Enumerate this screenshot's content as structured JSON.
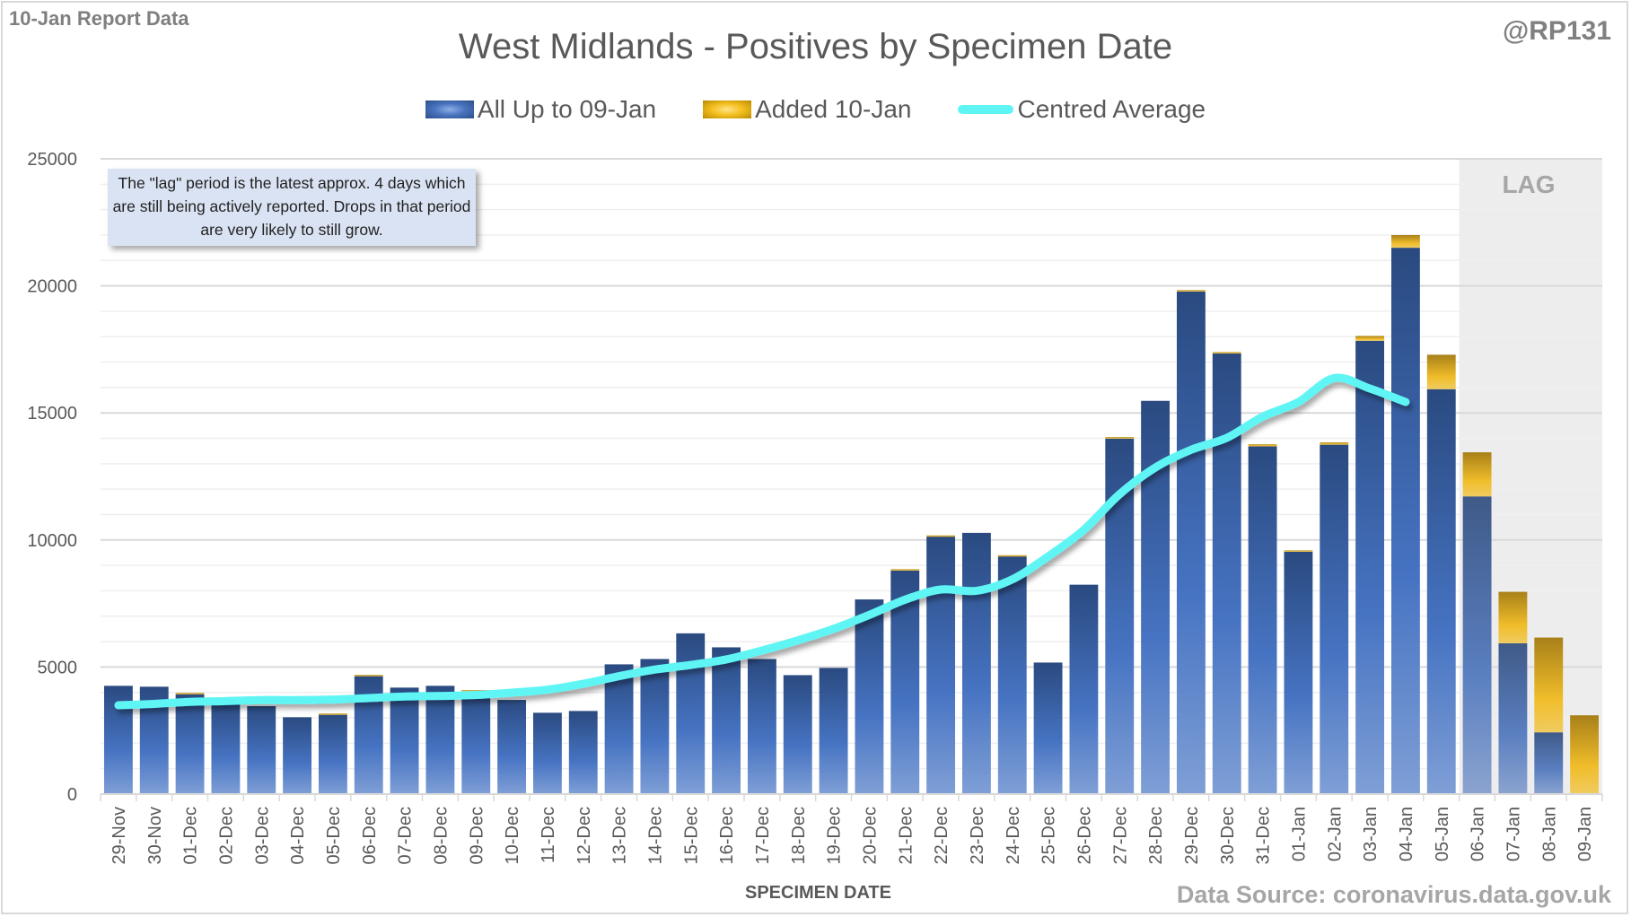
{
  "header": {
    "report_label": "10-Jan Report Data",
    "handle": "@RP131",
    "title": "West Midlands - Positives by Specimen Date"
  },
  "legend": {
    "items": [
      {
        "label": "All Up to 09-Jan",
        "kind": "bar",
        "color": "#3a62a8"
      },
      {
        "label": "Added 10-Jan",
        "kind": "bar",
        "color": "#f4c020"
      },
      {
        "label": "Centred Average",
        "kind": "line",
        "color": "#5ff5f5"
      }
    ]
  },
  "annotation": {
    "text": "The \"lag\" period is the latest approx. 4 days which are still being actively reported.  Drops in that period are very likely to still grow."
  },
  "lag_label": "LAG",
  "footer": {
    "x_axis_title": "SPECIMEN DATE",
    "source": "Data Source: coronavirus.data.gov.uk"
  },
  "chart_data": {
    "type": "bar",
    "stacked": true,
    "title": "West Midlands - Positives by Specimen Date",
    "xlabel": "SPECIMEN DATE",
    "ylabel": "",
    "ylim": [
      0,
      25000
    ],
    "yticks": [
      0,
      5000,
      10000,
      15000,
      20000,
      25000
    ],
    "minor_grid_step": 1000,
    "grid": true,
    "legend_position": "top-center",
    "lag_region": {
      "from": "06-Jan",
      "to": "09-Jan",
      "label": "LAG"
    },
    "categories": [
      "29-Nov",
      "30-Nov",
      "01-Dec",
      "02-Dec",
      "03-Dec",
      "04-Dec",
      "05-Dec",
      "06-Dec",
      "07-Dec",
      "08-Dec",
      "09-Dec",
      "10-Dec",
      "11-Dec",
      "12-Dec",
      "13-Dec",
      "14-Dec",
      "15-Dec",
      "16-Dec",
      "17-Dec",
      "18-Dec",
      "19-Dec",
      "20-Dec",
      "21-Dec",
      "22-Dec",
      "23-Dec",
      "24-Dec",
      "25-Dec",
      "26-Dec",
      "27-Dec",
      "28-Dec",
      "29-Dec",
      "30-Dec",
      "31-Dec",
      "01-Jan",
      "02-Jan",
      "03-Jan",
      "04-Jan",
      "05-Jan",
      "06-Jan",
      "07-Jan",
      "08-Jan",
      "09-Jan"
    ],
    "series": [
      {
        "name": "All Up to 09-Jan",
        "type": "bar",
        "values": [
          4260,
          4225,
          3940,
          3600,
          3460,
          3025,
          3140,
          4650,
          4190,
          4260,
          4070,
          3705,
          3200,
          3270,
          5105,
          5315,
          6325,
          5775,
          5315,
          4680,
          4965,
          7660,
          8800,
          10140,
          10280,
          9365,
          5175,
          8240,
          13990,
          15475,
          19780,
          17340,
          13685,
          9540,
          13750,
          17840,
          21500,
          15935,
          11715,
          5935,
          2430,
          0
        ]
      },
      {
        "name": "Added 10-Jan",
        "type": "bar",
        "values": [
          0,
          0,
          40,
          0,
          0,
          0,
          30,
          40,
          0,
          0,
          20,
          0,
          0,
          0,
          0,
          0,
          0,
          0,
          0,
          0,
          0,
          0,
          50,
          40,
          0,
          35,
          0,
          0,
          60,
          0,
          55,
          55,
          80,
          50,
          90,
          190,
          500,
          1355,
          1735,
          2025,
          3730,
          3100
        ]
      },
      {
        "name": "Centred Average",
        "type": "line",
        "values": [
          3495,
          3550,
          3630,
          3660,
          3700,
          3700,
          3720,
          3780,
          3840,
          3860,
          3900,
          3990,
          4110,
          4340,
          4640,
          4900,
          5080,
          5300,
          5650,
          6050,
          6500,
          7050,
          7650,
          8050,
          8000,
          8450,
          9350,
          10400,
          11800,
          12850,
          13550,
          14020,
          14850,
          15430,
          16370,
          15960,
          15430,
          null,
          null,
          null,
          null,
          null
        ]
      }
    ]
  }
}
